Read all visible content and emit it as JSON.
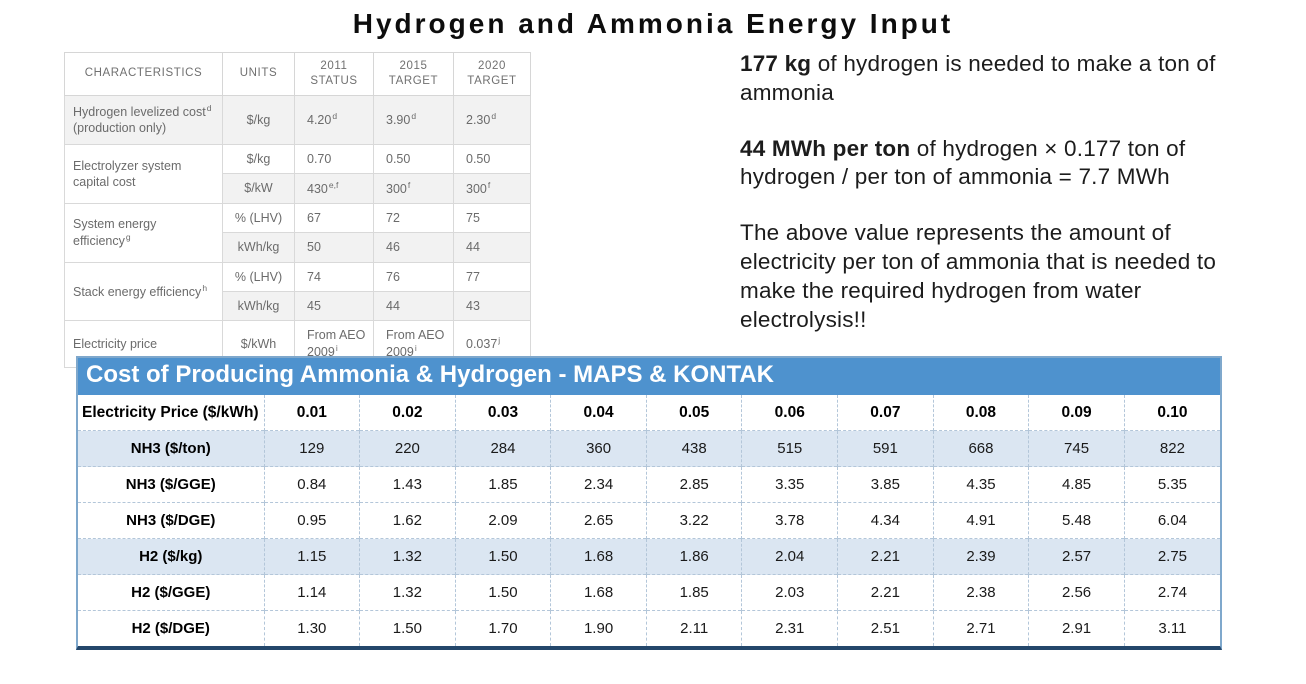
{
  "slide_title": "Hydrogen and Ammonia Energy Input",
  "colors": {
    "header_blue": "#4E92CE",
    "row_highlight": "#DBE6F2",
    "shaded_gray": "#F2F2F2",
    "cost_border": "#B3C6D9",
    "dark_edge": "#24476B",
    "char_text": "#6B6B6B"
  },
  "characteristics_table": {
    "headers": [
      "CHARACTERISTICS",
      "UNITS",
      "2011 STATUS",
      "2015 TARGET",
      "2020 TARGET"
    ],
    "groups": [
      {
        "label": {
          "text": "Hydrogen levelized cost",
          "sup": "d",
          "suffix": " (production only)"
        },
        "subrows": [
          {
            "unit": "$/kg",
            "shaded": true,
            "values": [
              {
                "v": "4.20",
                "sup": "d"
              },
              {
                "v": "3.90",
                "sup": "d"
              },
              {
                "v": "2.30",
                "sup": "d"
              }
            ]
          }
        ]
      },
      {
        "label": {
          "text": "Electrolyzer system capital cost",
          "sup": "",
          "suffix": ""
        },
        "subrows": [
          {
            "unit": "$/kg",
            "shaded": false,
            "values": [
              {
                "v": "0.70",
                "sup": ""
              },
              {
                "v": "0.50",
                "sup": ""
              },
              {
                "v": "0.50",
                "sup": ""
              }
            ]
          },
          {
            "unit": "$/kW",
            "shaded": true,
            "values": [
              {
                "v": "430",
                "sup": "e,f"
              },
              {
                "v": "300",
                "sup": "f"
              },
              {
                "v": "300",
                "sup": "f"
              }
            ]
          }
        ]
      },
      {
        "label": {
          "text": "System energy efficiency",
          "sup": "g",
          "suffix": ""
        },
        "subrows": [
          {
            "unit": "% (LHV)",
            "shaded": false,
            "values": [
              {
                "v": "67",
                "sup": ""
              },
              {
                "v": "72",
                "sup": ""
              },
              {
                "v": "75",
                "sup": ""
              }
            ]
          },
          {
            "unit": "kWh/kg",
            "shaded": true,
            "values": [
              {
                "v": "50",
                "sup": ""
              },
              {
                "v": "46",
                "sup": ""
              },
              {
                "v": "44",
                "sup": ""
              }
            ]
          }
        ]
      },
      {
        "label": {
          "text": "Stack energy efficiency",
          "sup": "h",
          "suffix": ""
        },
        "subrows": [
          {
            "unit": "% (LHV)",
            "shaded": false,
            "values": [
              {
                "v": "74",
                "sup": ""
              },
              {
                "v": "76",
                "sup": ""
              },
              {
                "v": "77",
                "sup": ""
              }
            ]
          },
          {
            "unit": "kWh/kg",
            "shaded": true,
            "values": [
              {
                "v": "45",
                "sup": ""
              },
              {
                "v": "44",
                "sup": ""
              },
              {
                "v": "43",
                "sup": ""
              }
            ]
          }
        ]
      },
      {
        "label": {
          "text": "Electricity price",
          "sup": "",
          "suffix": ""
        },
        "subrows": [
          {
            "unit": "$/kWh",
            "shaded": false,
            "values": [
              {
                "v": "From AEO 2009",
                "sup": "i"
              },
              {
                "v": "From AEO 2009",
                "sup": "i"
              },
              {
                "v": "0.037",
                "sup": "j"
              }
            ]
          }
        ]
      }
    ]
  },
  "notes": [
    {
      "bold": "177 kg",
      "rest": " of hydrogen is needed to make a ton of ammonia"
    },
    {
      "bold": "44 MWh per ton",
      "rest": " of hydrogen × 0.177 ton of hydrogen / per ton of ammonia = 7.7 MWh"
    },
    {
      "bold": "",
      "rest": "The above value represents the amount of electricity per ton of ammonia that is needed to make the required hydrogen from water electrolysis!!"
    }
  ],
  "cost_table": {
    "title": "Cost of Producing Ammonia & Hydrogen - MAPS & KONTAK",
    "header_label": "Electricity Price ($/kWh)",
    "electricity_prices": [
      "0.01",
      "0.02",
      "0.03",
      "0.04",
      "0.05",
      "0.06",
      "0.07",
      "0.08",
      "0.09",
      "0.10"
    ],
    "rows": [
      {
        "label": "NH3 ($/ton)",
        "highlight": true,
        "values": [
          "129",
          "220",
          "284",
          "360",
          "438",
          "515",
          "591",
          "668",
          "745",
          "822"
        ]
      },
      {
        "label": "NH3 ($/GGE)",
        "highlight": false,
        "values": [
          "0.84",
          "1.43",
          "1.85",
          "2.34",
          "2.85",
          "3.35",
          "3.85",
          "4.35",
          "4.85",
          "5.35"
        ]
      },
      {
        "label": "NH3 ($/DGE)",
        "highlight": false,
        "values": [
          "0.95",
          "1.62",
          "2.09",
          "2.65",
          "3.22",
          "3.78",
          "4.34",
          "4.91",
          "5.48",
          "6.04"
        ]
      },
      {
        "label": "H2 ($/kg)",
        "highlight": true,
        "values": [
          "1.15",
          "1.32",
          "1.50",
          "1.68",
          "1.86",
          "2.04",
          "2.21",
          "2.39",
          "2.57",
          "2.75"
        ]
      },
      {
        "label": "H2 ($/GGE)",
        "highlight": false,
        "values": [
          "1.14",
          "1.32",
          "1.50",
          "1.68",
          "1.85",
          "2.03",
          "2.21",
          "2.38",
          "2.56",
          "2.74"
        ]
      },
      {
        "label": "H2 ($/DGE)",
        "highlight": false,
        "values": [
          "1.30",
          "1.50",
          "1.70",
          "1.90",
          "2.11",
          "2.31",
          "2.51",
          "2.71",
          "2.91",
          "3.11"
        ]
      }
    ]
  }
}
